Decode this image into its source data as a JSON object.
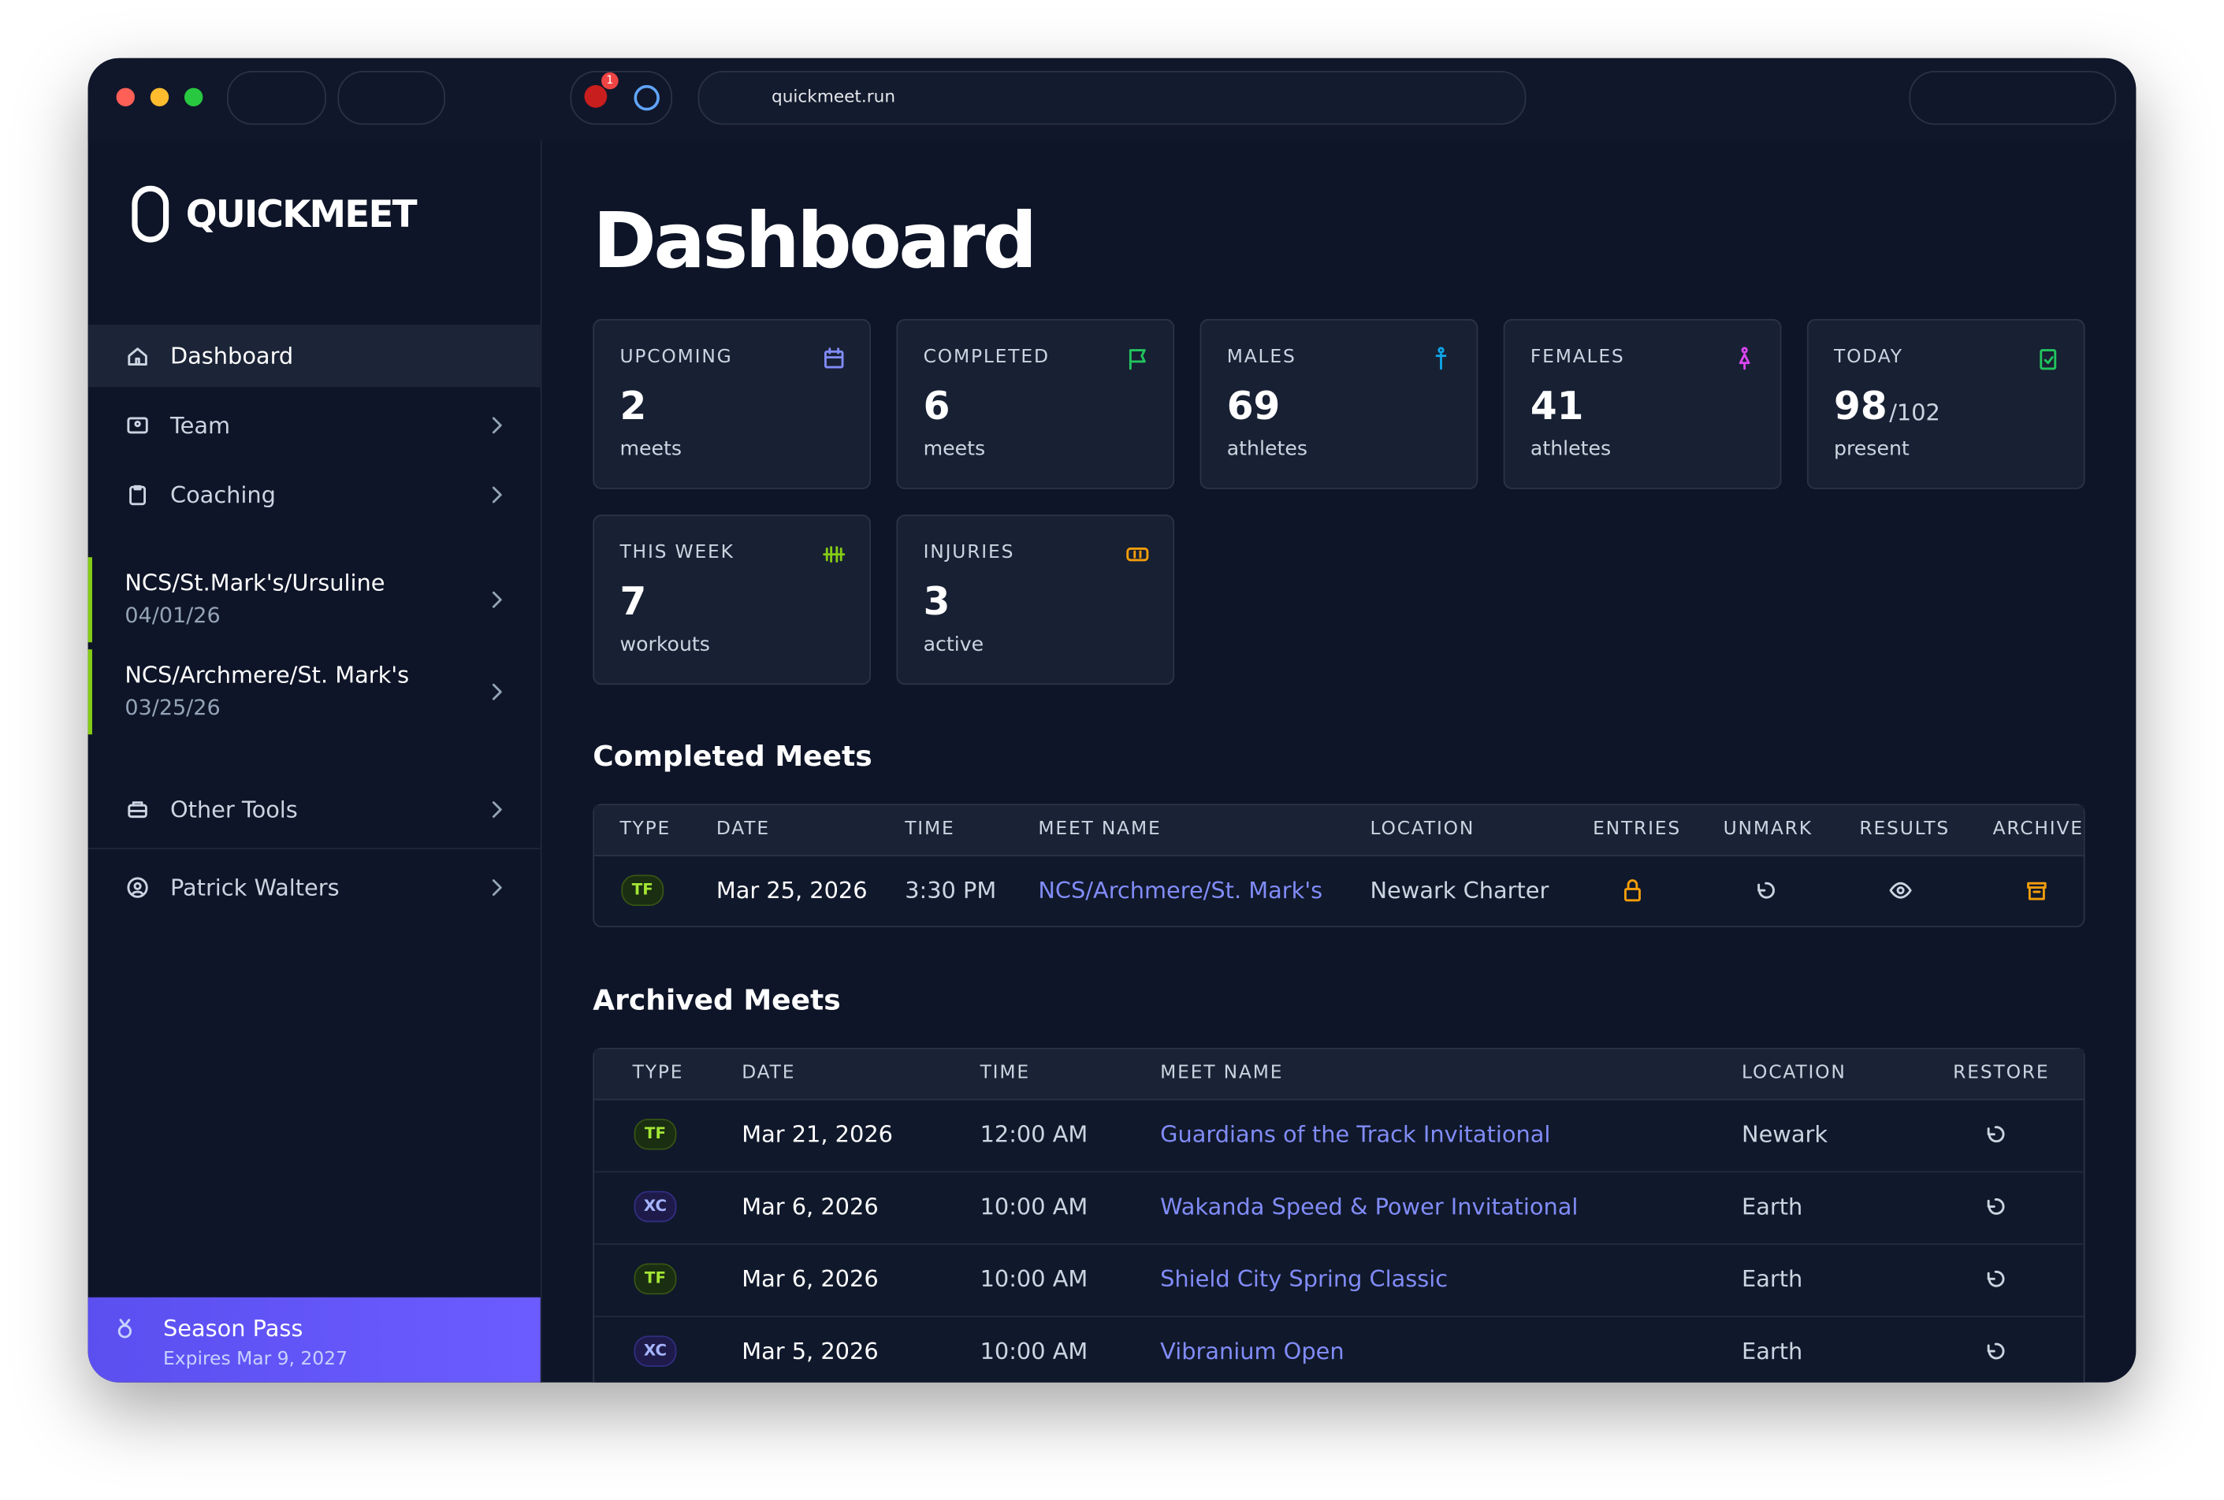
{
  "browser": {
    "url": "quickmeet.run",
    "badge": "1"
  },
  "sidebar": {
    "logo": "QUICKMEET",
    "nav": [
      "Dashboard",
      "Team",
      "Coaching"
    ],
    "meets": [
      {
        "name": "NCS/St.Mark's/Ursuline",
        "date": "04/01/26"
      },
      {
        "name": "NCS/Archmere/St. Mark's",
        "date": "03/25/26"
      }
    ],
    "tools": [
      "Other Tools",
      "Patrick Walters"
    ],
    "pass": {
      "title": "Season Pass",
      "expires": "Expires Mar 9, 2027"
    }
  },
  "header": {
    "title": "Dashboard"
  },
  "stats": [
    {
      "label": "UPCOMING",
      "value": 2,
      "unit": "meets"
    },
    {
      "label": "COMPLETED",
      "value": 6,
      "unit": "meets"
    },
    {
      "label": "MALES",
      "value": 69,
      "unit": "athletes"
    },
    {
      "label": "FEMALES",
      "value": 41,
      "unit": "athletes"
    },
    {
      "label": "TODAY",
      "value": 98,
      "total": "/102",
      "unit": "present"
    },
    {
      "label": "THIS WEEK",
      "value": 7,
      "unit": "workouts"
    },
    {
      "label": "INJURIES",
      "value": 3,
      "unit": "active"
    }
  ],
  "completed": {
    "title": "Completed Meets",
    "columns": [
      "TYPE",
      "DATE",
      "TIME",
      "MEET NAME",
      "LOCATION",
      "ENTRIES",
      "UNMARK",
      "RESULTS",
      "ARCHIVE"
    ],
    "rows": [
      [
        "TF",
        "Mar 25, 2026",
        "3:30 PM",
        "NCS/Archmere/St. Mark's",
        "Newark Charter"
      ]
    ]
  },
  "archived": {
    "title": "Archived Meets",
    "columns": [
      "TYPE",
      "DATE",
      "TIME",
      "MEET NAME",
      "LOCATION",
      "RESTORE"
    ],
    "rows": [
      [
        "TF",
        "Mar 21, 2026",
        "12:00 AM",
        "Guardians of the Track Invitational",
        "Newark"
      ],
      [
        "XC",
        "Mar 6, 2026",
        "10:00 AM",
        "Wakanda Speed & Power Invitational",
        "Earth"
      ],
      [
        "TF",
        "Mar 6, 2026",
        "10:00 AM",
        "Shield City Spring Classic",
        "Earth"
      ],
      [
        "XC",
        "Mar 5, 2026",
        "10:00 AM",
        "Vibranium Open",
        "Earth"
      ]
    ]
  }
}
